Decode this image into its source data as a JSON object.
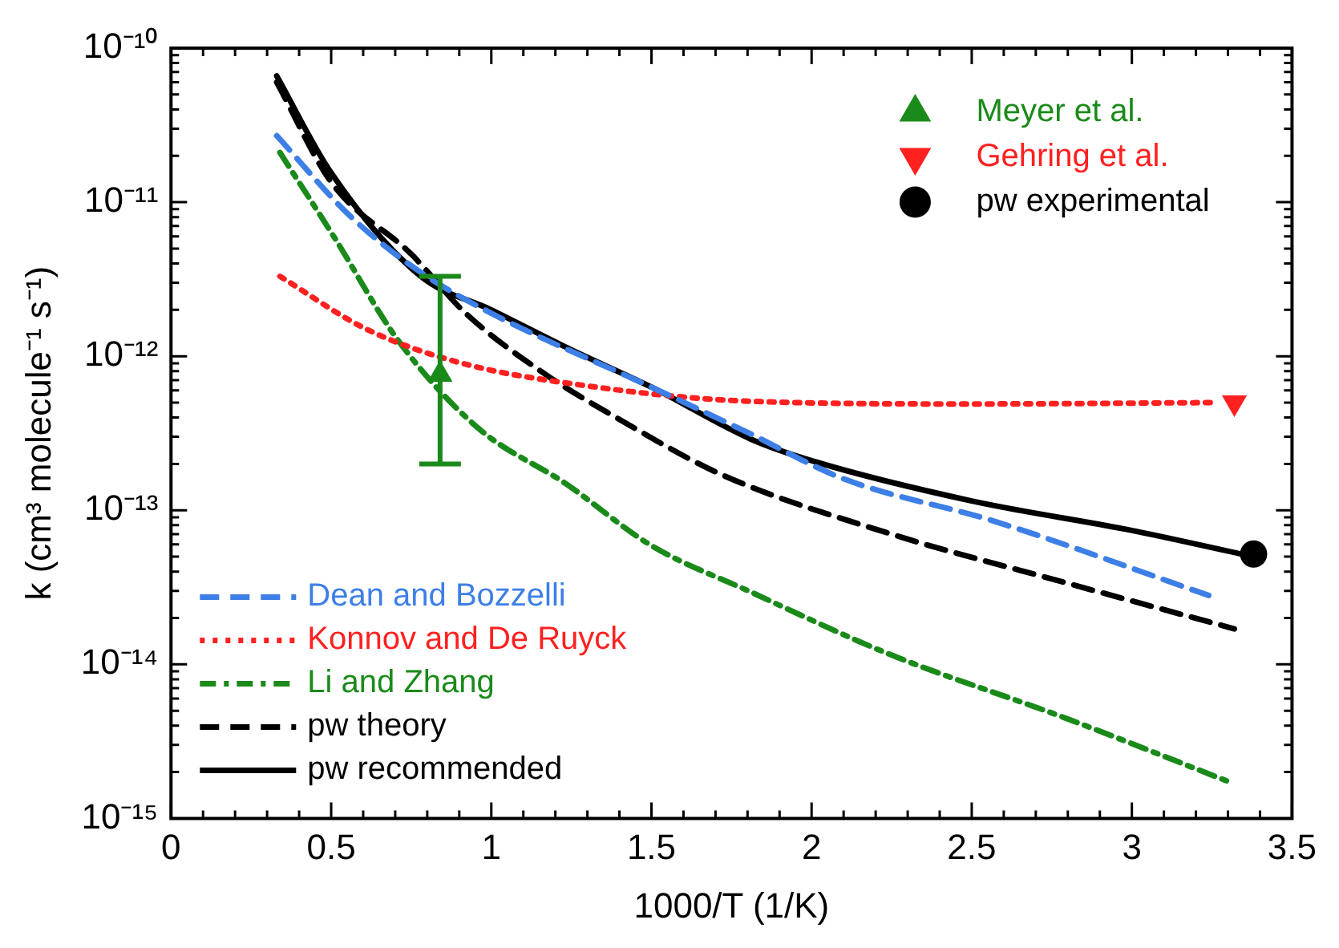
{
  "chart_data": {
    "type": "line",
    "xlabel": "1000/T (1/K)",
    "ylabel": "k (cm³ molecule⁻¹ s⁻¹)",
    "xlim": [
      0,
      3.5
    ],
    "xticks": [
      0,
      0.5,
      1,
      1.5,
      2,
      2.5,
      3,
      3.5
    ],
    "ylim": [
      1e-15,
      1e-10
    ],
    "yticks": [
      {
        "value": 1e-15,
        "label": "10⁻¹⁵"
      },
      {
        "value": 1e-14,
        "label": "10⁻¹⁴"
      },
      {
        "value": 1e-13,
        "label": "10⁻¹³"
      },
      {
        "value": 1e-12,
        "label": "10⁻¹²"
      },
      {
        "value": 1e-11,
        "label": "10⁻¹¹"
      },
      {
        "value": 1e-10,
        "label": "10⁻¹⁰"
      }
    ],
    "log": "y",
    "grid": false,
    "legend": "bottom left",
    "series": [
      {
        "name": "Dean and Bozzelli",
        "type": "line",
        "color": "#3d7fe6",
        "line_style": "dashed",
        "marker": "none",
        "x": [
          0.33,
          0.56,
          0.78,
          1.0,
          1.5,
          1.8,
          2.1,
          2.57,
          3.24
        ],
        "values": [
          2.7e-11,
          8.1e-12,
          3.5e-12,
          1.9e-12,
          6.3e-13,
          3.2e-13,
          1.6e-13,
          8.5e-14,
          2.8e-14
        ]
      },
      {
        "name": "Konnov and De Ruyck",
        "type": "line",
        "color": "#ff2020",
        "line_style": "dotted",
        "marker": "none",
        "x": [
          0.34,
          0.61,
          0.9,
          1.28,
          1.81,
          2.5,
          3.26
        ],
        "values": [
          3.3e-12,
          1.5e-12,
          9.1e-13,
          6.5e-13,
          5.1e-13,
          4.9e-13,
          5e-13
        ]
      },
      {
        "name": "Li and Zhang",
        "type": "line",
        "color": "#1a8a1a",
        "line_style": "dashdot",
        "marker": "none",
        "x": [
          0.34,
          0.51,
          0.71,
          0.96,
          1.23,
          1.5,
          1.81,
          2.24,
          2.79,
          3.3
        ],
        "values": [
          2.1e-11,
          5.9e-12,
          1.26e-12,
          3.4e-13,
          1.5e-13,
          5.9e-14,
          2.95e-14,
          1.17e-14,
          4.5e-15,
          1.74e-15
        ]
      },
      {
        "name": "pw theory",
        "type": "line",
        "color": "#000000",
        "line_style": "dashed",
        "marker": "none",
        "x": [
          0.33,
          0.5,
          0.75,
          0.92,
          1.17,
          1.39,
          1.72,
          2.24,
          2.79,
          3.32
        ],
        "values": [
          6e-11,
          1.35e-11,
          4.6e-12,
          1.9e-12,
          7.6e-13,
          4e-13,
          1.7e-13,
          7.1e-14,
          3.4e-14,
          1.7e-14
        ]
      },
      {
        "name": "pw recommended",
        "type": "line",
        "color": "#000000",
        "line_style": "solid",
        "marker": "none",
        "x": [
          0.33,
          0.5,
          0.78,
          1.0,
          1.25,
          1.5,
          1.81,
          2.0,
          2.5,
          3.0,
          3.36
        ],
        "values": [
          6.6e-11,
          1.55e-11,
          3.3e-12,
          2e-12,
          1.1e-12,
          6.3e-13,
          2.9e-13,
          2.1e-13,
          1.15e-13,
          7.4e-14,
          5.1e-14
        ]
      },
      {
        "name": "Meyer et al.",
        "type": "scatter",
        "color": "#1a8a1a",
        "marker": "triangle",
        "x": [
          0.84
        ],
        "values": [
          7.6e-13
        ],
        "errors": [
          [
            2e-13,
            3.3e-12
          ]
        ]
      },
      {
        "name": "Gehring et al.",
        "type": "scatter",
        "color": "#ff2020",
        "marker": "triangle_down",
        "x": [
          3.32
        ],
        "values": [
          5e-13
        ]
      },
      {
        "name": "pw experimental",
        "type": "scatter",
        "color": "#000000",
        "marker": "circle",
        "x": [
          3.38
        ],
        "values": [
          5.2e-14
        ]
      }
    ]
  }
}
